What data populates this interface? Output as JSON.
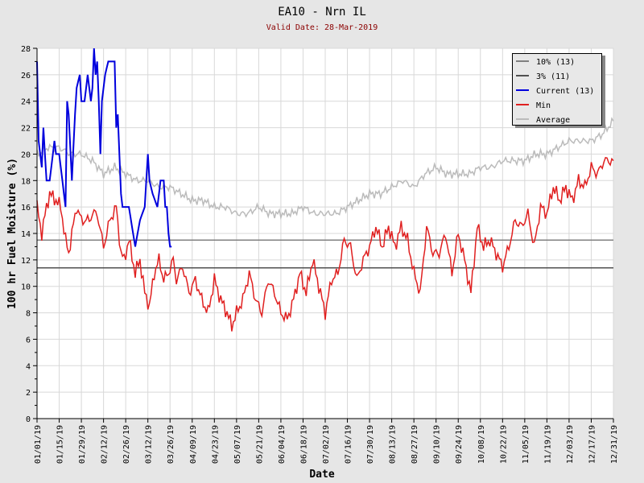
{
  "chart_data": {
    "type": "line",
    "title": "EA10 - Nrn IL",
    "subtitle": "Valid Date: 28-Mar-2019",
    "xlabel": "Date",
    "ylabel": "100 hr Fuel Moisture (%)",
    "ylim": [
      0,
      28
    ],
    "yticks": [
      0,
      2,
      4,
      6,
      8,
      10,
      12,
      14,
      16,
      18,
      20,
      22,
      24,
      26,
      28
    ],
    "xlim_day_of_year": [
      0,
      364
    ],
    "xtick_labels": [
      "01/01/19",
      "01/15/19",
      "01/29/19",
      "02/12/19",
      "02/26/19",
      "03/12/19",
      "03/26/19",
      "04/09/19",
      "04/23/19",
      "05/07/19",
      "05/21/19",
      "06/04/19",
      "06/18/19",
      "07/02/19",
      "07/16/19",
      "07/30/19",
      "08/13/19",
      "08/27/19",
      "09/10/19",
      "09/24/19",
      "10/08/19",
      "10/22/19",
      "11/05/19",
      "11/19/19",
      "12/03/19",
      "12/17/19",
      "12/31/19"
    ],
    "grid": true,
    "legend_position": "top-right",
    "legend": [
      "10% (13)",
      "3% (11)",
      "Current (13)",
      "Min",
      "Average"
    ],
    "hlines": [
      {
        "name": "10% (13)",
        "value": 13.5,
        "color": "#808080"
      },
      {
        "name": "3% (11)",
        "value": 11.4,
        "color": "#505050"
      }
    ],
    "series": [
      {
        "name": "Current (13)",
        "color": "#0000dd",
        "x_day": [
          0,
          1,
          3,
          4,
          6,
          8,
          10,
          11,
          12,
          14,
          16,
          18,
          19,
          20,
          22,
          24,
          25,
          27,
          28,
          30,
          32,
          34,
          35,
          36,
          37,
          38,
          39,
          40,
          41,
          43,
          45,
          49,
          50,
          51,
          52,
          53,
          54,
          58,
          62,
          65,
          68,
          70,
          71,
          73,
          76,
          78,
          80,
          81,
          82,
          83,
          84,
          85
        ],
        "values": [
          27,
          21,
          19,
          22,
          18,
          18,
          20,
          21,
          20,
          20,
          18,
          16,
          24,
          23,
          18,
          23,
          25,
          26,
          24,
          24,
          26,
          24,
          25,
          28,
          26,
          27,
          24,
          20,
          24,
          26,
          27,
          27,
          22,
          23,
          20,
          17,
          16,
          16,
          13,
          15,
          16,
          20,
          18,
          17,
          16,
          18,
          18,
          16,
          16,
          14,
          13,
          13
        ]
      },
      {
        "name": "Min",
        "color": "#e02020",
        "x_day": [
          0,
          3,
          6,
          8,
          12,
          15,
          18,
          20,
          22,
          25,
          28,
          33,
          35,
          38,
          42,
          46,
          50,
          53,
          55,
          58,
          62,
          65,
          68,
          71,
          74,
          77,
          80,
          83,
          86,
          88,
          92,
          96,
          100,
          104,
          108,
          112,
          116,
          120,
          123,
          126,
          130,
          134,
          138,
          142,
          146,
          150,
          154,
          158,
          162,
          166,
          170,
          174,
          178,
          182,
          186,
          190,
          194,
          198,
          202,
          206,
          210,
          214,
          218,
          222,
          226,
          230,
          234,
          238,
          242,
          246,
          250,
          254,
          258,
          262,
          266,
          270,
          274,
          278,
          282,
          286,
          290,
          294,
          298,
          302,
          306,
          310,
          314,
          318,
          322,
          326,
          330,
          334,
          338,
          342,
          346,
          350,
          354,
          358,
          364
        ],
        "values": [
          16,
          14,
          16,
          17,
          16.5,
          16,
          13.5,
          12.5,
          14,
          16,
          15,
          15,
          15.5,
          15.5,
          13,
          15,
          16,
          12.5,
          12,
          13.5,
          11,
          12,
          9.5,
          8.5,
          11,
          12,
          10.5,
          11,
          12,
          10.5,
          11.5,
          9.5,
          10.5,
          9,
          8,
          10.5,
          9,
          8,
          7,
          8,
          9,
          11,
          9,
          8,
          10.5,
          9.5,
          8,
          7.5,
          9,
          11,
          9.5,
          12,
          10,
          8,
          10.5,
          11,
          13.5,
          13,
          10.5,
          12,
          13,
          14.5,
          13,
          14.5,
          13,
          14.5,
          13.5,
          11,
          9.5,
          14.5,
          12.5,
          12.5,
          14,
          11,
          14,
          12,
          9.5,
          14.5,
          13,
          13.5,
          12.5,
          11.5,
          13,
          15,
          14.5,
          15.5,
          13,
          16,
          15.5,
          17.5,
          16.5,
          17.5,
          16.5,
          18,
          17.5,
          19,
          18.5,
          19.5,
          19.5
        ]
      },
      {
        "name": "Average",
        "color": "#bbbbbb",
        "x_day": [
          0,
          7,
          14,
          21,
          28,
          35,
          42,
          49,
          56,
          63,
          70,
          77,
          84,
          91,
          98,
          105,
          112,
          119,
          126,
          133,
          140,
          147,
          154,
          161,
          168,
          175,
          182,
          189,
          196,
          203,
          210,
          217,
          224,
          231,
          238,
          245,
          252,
          259,
          266,
          273,
          280,
          287,
          294,
          301,
          308,
          315,
          322,
          329,
          336,
          343,
          350,
          357,
          364
        ],
        "values": [
          20,
          20.5,
          20.5,
          20,
          20,
          19.5,
          18.5,
          19,
          18.5,
          18,
          18,
          17.5,
          17.5,
          17,
          16.5,
          16.5,
          16,
          16,
          15.5,
          15.5,
          16,
          15.5,
          15.5,
          15.5,
          16,
          15.5,
          15.5,
          15.5,
          16,
          16.5,
          17,
          17,
          17.5,
          18,
          17.5,
          18.5,
          19,
          18.5,
          18.5,
          18.5,
          19,
          19,
          19.5,
          19.5,
          19.5,
          20,
          20,
          20.5,
          21,
          21,
          21,
          21.5,
          22.5
        ]
      }
    ]
  }
}
